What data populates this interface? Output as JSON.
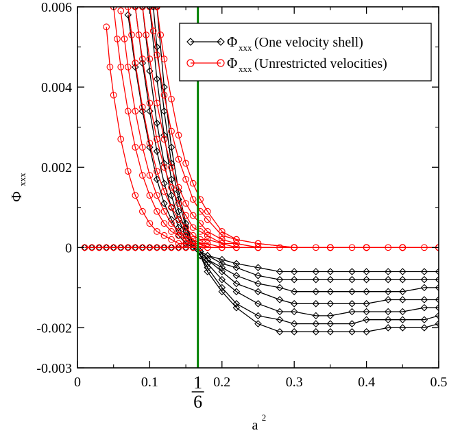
{
  "chart_data": {
    "type": "line",
    "xlabel": "a",
    "xlabel_sup": "2",
    "ylabel": "Φ",
    "ylabel_sub": "xxx",
    "xlim": [
      0,
      0.5
    ],
    "ylim": [
      -0.003,
      0.006
    ],
    "x_ticks": [
      {
        "value": 0,
        "label": "0"
      },
      {
        "value": 0.1,
        "label": "0.1"
      },
      {
        "value": 0.2,
        "label": "0.2"
      },
      {
        "value": 0.3,
        "label": "0.3"
      },
      {
        "value": 0.4,
        "label": "0.4"
      },
      {
        "value": 0.5,
        "label": "0.5"
      }
    ],
    "special_x_tick": {
      "value": 0.16667,
      "numerator": "1",
      "denominator": "6"
    },
    "y_ticks": [
      {
        "value": -0.003,
        "label": "-0.003"
      },
      {
        "value": -0.002,
        "label": "-0.002"
      },
      {
        "value": 0,
        "label": "0"
      },
      {
        "value": 0.002,
        "label": "0.002"
      },
      {
        "value": 0.004,
        "label": "0.004"
      },
      {
        "value": 0.006,
        "label": "0.006"
      }
    ],
    "vertical_line": {
      "x": 0.16667,
      "color": "#008000"
    },
    "legend": {
      "placement": "top-right",
      "entries": [
        {
          "symbol": "Φ",
          "sub": "xxx",
          "text": "(One velocity shell)",
          "color": "#000000",
          "marker": "diamond"
        },
        {
          "symbol": "Φ",
          "sub": "xxx",
          "text": "(Unrestricted velocities)",
          "color": "#ff0000",
          "marker": "circle"
        }
      ]
    },
    "series": [
      {
        "group": "one-velocity-shell",
        "color": "#000000",
        "marker": "diamond",
        "x": [
          0.01,
          0.02,
          0.03,
          0.04,
          0.05,
          0.06,
          0.07,
          0.08,
          0.09,
          0.1,
          0.11,
          0.12,
          0.13,
          0.14,
          0.15,
          0.16,
          0.17,
          0.18,
          0.2,
          0.22,
          0.25,
          0.28,
          0.3,
          0.33,
          0.35,
          0.38,
          0.4,
          0.43,
          0.45,
          0.48,
          0.5
        ],
        "y": [
          0.0,
          0.0,
          0.0,
          0.0,
          0.0,
          0.0,
          0.0,
          0.0,
          0.0,
          0.0,
          0.0,
          0.0,
          0.0,
          0.0,
          0.0,
          0.0,
          -0.0002,
          -0.0006,
          -0.0011,
          -0.0015,
          -0.0019,
          -0.0021,
          -0.0021,
          -0.0021,
          -0.0021,
          -0.0021,
          -0.0021,
          -0.002,
          -0.002,
          -0.002,
          -0.0019
        ]
      },
      {
        "group": "one-velocity-shell",
        "color": "#000000",
        "marker": "diamond",
        "x": [
          0.07,
          0.08,
          0.09,
          0.1,
          0.11,
          0.12,
          0.13,
          0.14,
          0.15,
          0.16,
          0.17,
          0.18,
          0.2,
          0.22,
          0.25,
          0.28,
          0.3,
          0.33,
          0.35,
          0.38,
          0.4,
          0.43,
          0.45,
          0.48,
          0.5
        ],
        "y": [
          0.0058,
          0.0045,
          0.0034,
          0.0025,
          0.0017,
          0.0011,
          0.0007,
          0.0003,
          0.0001,
          0.0,
          -0.0002,
          -0.0005,
          -0.001,
          -0.0014,
          -0.0017,
          -0.0018,
          -0.0019,
          -0.0019,
          -0.0019,
          -0.0019,
          -0.0018,
          -0.0018,
          -0.0018,
          -0.0018,
          -0.0017
        ]
      },
      {
        "group": "one-velocity-shell",
        "color": "#000000",
        "marker": "diamond",
        "x": [
          0.08,
          0.09,
          0.1,
          0.11,
          0.12,
          0.13,
          0.14,
          0.15,
          0.16,
          0.17,
          0.18,
          0.2,
          0.22,
          0.25,
          0.28,
          0.3,
          0.33,
          0.35,
          0.38,
          0.4,
          0.43,
          0.45,
          0.48,
          0.5
        ],
        "y": [
          0.006,
          0.0046,
          0.0034,
          0.0024,
          0.0016,
          0.001,
          0.0005,
          0.0002,
          0.0,
          -0.0002,
          -0.0004,
          -0.0008,
          -0.0011,
          -0.0014,
          -0.0016,
          -0.0016,
          -0.0017,
          -0.0017,
          -0.0016,
          -0.0016,
          -0.0016,
          -0.0016,
          -0.0015,
          -0.0015
        ]
      },
      {
        "group": "one-velocity-shell",
        "color": "#000000",
        "marker": "diamond",
        "x": [
          0.09,
          0.1,
          0.11,
          0.12,
          0.13,
          0.14,
          0.15,
          0.16,
          0.17,
          0.18,
          0.2,
          0.22,
          0.25,
          0.28,
          0.3,
          0.33,
          0.35,
          0.38,
          0.4,
          0.43,
          0.45,
          0.48,
          0.5
        ],
        "y": [
          0.006,
          0.0044,
          0.0031,
          0.0021,
          0.0013,
          0.0007,
          0.0003,
          0.0,
          -0.0002,
          -0.0003,
          -0.0006,
          -0.0009,
          -0.0011,
          -0.0013,
          -0.0014,
          -0.0014,
          -0.0014,
          -0.0014,
          -0.0014,
          -0.0013,
          -0.0013,
          -0.0013,
          -0.0013
        ]
      },
      {
        "group": "one-velocity-shell",
        "color": "#000000",
        "marker": "diamond",
        "x": [
          0.1,
          0.11,
          0.12,
          0.13,
          0.14,
          0.15,
          0.16,
          0.17,
          0.18,
          0.2,
          0.22,
          0.25,
          0.28,
          0.3,
          0.33,
          0.35,
          0.38,
          0.4,
          0.43,
          0.45,
          0.48,
          0.5
        ],
        "y": [
          0.006,
          0.0042,
          0.0028,
          0.0017,
          0.0009,
          0.0004,
          0.0,
          -0.0001,
          -0.0003,
          -0.0005,
          -0.0007,
          -0.0009,
          -0.001,
          -0.0011,
          -0.0011,
          -0.0011,
          -0.0011,
          -0.0011,
          -0.0011,
          -0.0011,
          -0.001,
          -0.001
        ]
      },
      {
        "group": "one-velocity-shell",
        "color": "#000000",
        "marker": "diamond",
        "x": [
          0.105,
          0.11,
          0.12,
          0.13,
          0.14,
          0.15,
          0.16,
          0.17,
          0.18,
          0.2,
          0.22,
          0.25,
          0.28,
          0.3,
          0.33,
          0.35,
          0.38,
          0.4,
          0.43,
          0.45,
          0.48,
          0.5
        ],
        "y": [
          0.006,
          0.005,
          0.0034,
          0.0021,
          0.0012,
          0.0005,
          0.0001,
          -0.0001,
          -0.0002,
          -0.0004,
          -0.0005,
          -0.0007,
          -0.0008,
          -0.0008,
          -0.0008,
          -0.0008,
          -0.0008,
          -0.0008,
          -0.0008,
          -0.0008,
          -0.0008,
          -0.0008
        ]
      },
      {
        "group": "one-velocity-shell",
        "color": "#000000",
        "marker": "diamond",
        "x": [
          0.11,
          0.12,
          0.13,
          0.14,
          0.15,
          0.16,
          0.17,
          0.18,
          0.2,
          0.22,
          0.25,
          0.28,
          0.3,
          0.33,
          0.35,
          0.38,
          0.4,
          0.43,
          0.45,
          0.48,
          0.5
        ],
        "y": [
          0.006,
          0.004,
          0.0025,
          0.0014,
          0.0006,
          0.0001,
          -0.0001,
          -0.0002,
          -0.0003,
          -0.0004,
          -0.0005,
          -0.0006,
          -0.0006,
          -0.0006,
          -0.0006,
          -0.0006,
          -0.0006,
          -0.0006,
          -0.0006,
          -0.0006,
          -0.0006
        ]
      },
      {
        "group": "unrestricted-velocities",
        "color": "#ff0000",
        "marker": "circle",
        "x": [
          0.01,
          0.02,
          0.03,
          0.04,
          0.05,
          0.06,
          0.07,
          0.08,
          0.09,
          0.1,
          0.11,
          0.12,
          0.13,
          0.14,
          0.15,
          0.16,
          0.17,
          0.18,
          0.2,
          0.22,
          0.25,
          0.28,
          0.3,
          0.33,
          0.35,
          0.38,
          0.4,
          0.43,
          0.45,
          0.48,
          0.5
        ],
        "y": [
          0.0,
          0.0,
          0.0,
          0.0,
          0.0,
          0.0,
          0.0,
          0.0,
          0.0,
          0.0,
          0.0,
          0.0,
          0.0,
          0.0,
          0.0,
          0.0,
          0.0,
          0.0,
          0.0,
          0.0,
          0.0,
          0.0,
          0.0,
          0.0,
          0.0,
          0.0,
          0.0,
          0.0,
          0.0,
          0.0,
          0.0
        ]
      },
      {
        "group": "unrestricted-velocities",
        "color": "#ff0000",
        "marker": "circle",
        "x": [
          0.04,
          0.045,
          0.05,
          0.06,
          0.07,
          0.08,
          0.09,
          0.1,
          0.11,
          0.12,
          0.13,
          0.14,
          0.15,
          0.16,
          0.17,
          0.18,
          0.2,
          0.22,
          0.25,
          0.3,
          0.35,
          0.4,
          0.45,
          0.5
        ],
        "y": [
          0.0055,
          0.0045,
          0.0038,
          0.0027,
          0.0019,
          0.0013,
          0.0009,
          0.0006,
          0.0004,
          0.0003,
          0.0002,
          0.0001,
          0.0001,
          0.0001,
          0.0,
          0.0,
          0.0,
          0.0,
          0.0,
          0.0,
          0.0,
          0.0,
          0.0,
          0.0
        ]
      },
      {
        "group": "unrestricted-velocities",
        "color": "#ff0000",
        "marker": "circle",
        "x": [
          0.05,
          0.055,
          0.06,
          0.07,
          0.08,
          0.09,
          0.1,
          0.11,
          0.12,
          0.13,
          0.14,
          0.15,
          0.16,
          0.17,
          0.18,
          0.2,
          0.22,
          0.25,
          0.3,
          0.35,
          0.4,
          0.45,
          0.5
        ],
        "y": [
          0.006,
          0.0052,
          0.0045,
          0.0034,
          0.0025,
          0.0018,
          0.0013,
          0.0009,
          0.0006,
          0.0004,
          0.0003,
          0.0002,
          0.0001,
          0.0001,
          0.0,
          0.0,
          0.0,
          0.0,
          0.0,
          0.0,
          0.0,
          0.0,
          0.0
        ]
      },
      {
        "group": "unrestricted-velocities",
        "color": "#ff0000",
        "marker": "circle",
        "x": [
          0.06,
          0.065,
          0.07,
          0.08,
          0.09,
          0.1,
          0.11,
          0.12,
          0.13,
          0.14,
          0.15,
          0.16,
          0.17,
          0.18,
          0.2,
          0.22,
          0.25,
          0.3,
          0.35,
          0.4,
          0.45,
          0.5
        ],
        "y": [
          0.0059,
          0.0052,
          0.0045,
          0.0034,
          0.0025,
          0.0018,
          0.0013,
          0.0009,
          0.0006,
          0.0004,
          0.0003,
          0.0002,
          0.0001,
          0.0001,
          0.0,
          0.0,
          0.0,
          0.0,
          0.0,
          0.0,
          0.0,
          0.0
        ]
      },
      {
        "group": "unrestricted-velocities",
        "color": "#ff0000",
        "marker": "circle",
        "x": [
          0.07,
          0.075,
          0.08,
          0.09,
          0.1,
          0.11,
          0.12,
          0.13,
          0.14,
          0.15,
          0.16,
          0.17,
          0.18,
          0.2,
          0.22,
          0.25,
          0.3,
          0.35,
          0.4,
          0.45,
          0.5
        ],
        "y": [
          0.006,
          0.0053,
          0.0046,
          0.0035,
          0.0026,
          0.0019,
          0.0014,
          0.001,
          0.0007,
          0.0005,
          0.0003,
          0.0002,
          0.0002,
          0.0001,
          0.0,
          0.0,
          0.0,
          0.0,
          0.0,
          0.0,
          0.0
        ]
      },
      {
        "group": "unrestricted-velocities",
        "color": "#ff0000",
        "marker": "circle",
        "x": [
          0.08,
          0.085,
          0.09,
          0.1,
          0.11,
          0.12,
          0.13,
          0.14,
          0.15,
          0.16,
          0.17,
          0.18,
          0.2,
          0.22,
          0.25,
          0.3,
          0.35,
          0.4,
          0.45,
          0.5
        ],
        "y": [
          0.006,
          0.0053,
          0.0047,
          0.0036,
          0.0027,
          0.002,
          0.0015,
          0.0011,
          0.0008,
          0.0005,
          0.0004,
          0.0003,
          0.0001,
          0.0001,
          0.0,
          0.0,
          0.0,
          0.0,
          0.0,
          0.0
        ]
      },
      {
        "group": "unrestricted-velocities",
        "color": "#ff0000",
        "marker": "circle",
        "x": [
          0.09,
          0.095,
          0.1,
          0.11,
          0.12,
          0.13,
          0.14,
          0.15,
          0.16,
          0.17,
          0.18,
          0.2,
          0.22,
          0.25,
          0.3,
          0.35,
          0.4,
          0.45,
          0.5
        ],
        "y": [
          0.006,
          0.0053,
          0.0047,
          0.0036,
          0.0027,
          0.002,
          0.0015,
          0.0011,
          0.0008,
          0.0006,
          0.0004,
          0.0002,
          0.0001,
          0.0,
          0.0,
          0.0,
          0.0,
          0.0,
          0.0
        ]
      },
      {
        "group": "unrestricted-velocities",
        "color": "#ff0000",
        "marker": "circle",
        "x": [
          0.1,
          0.105,
          0.11,
          0.12,
          0.13,
          0.14,
          0.15,
          0.16,
          0.17,
          0.18,
          0.2,
          0.22,
          0.25,
          0.3,
          0.35,
          0.4,
          0.45,
          0.5
        ],
        "y": [
          0.006,
          0.0054,
          0.0048,
          0.0038,
          0.0029,
          0.0022,
          0.0017,
          0.0012,
          0.0009,
          0.0007,
          0.0003,
          0.0002,
          0.0001,
          0.0,
          0.0,
          0.0,
          0.0,
          0.0
        ]
      },
      {
        "group": "unrestricted-velocities",
        "color": "#ff0000",
        "marker": "circle",
        "x": [
          0.11,
          0.115,
          0.12,
          0.13,
          0.14,
          0.15,
          0.16,
          0.17,
          0.18,
          0.2,
          0.22,
          0.25,
          0.3,
          0.35,
          0.4,
          0.45,
          0.5
        ],
        "y": [
          0.006,
          0.0053,
          0.0047,
          0.0037,
          0.0028,
          0.0021,
          0.0016,
          0.0012,
          0.0009,
          0.0004,
          0.0002,
          0.0001,
          0.0,
          0.0,
          0.0,
          0.0,
          0.0
        ]
      }
    ]
  }
}
